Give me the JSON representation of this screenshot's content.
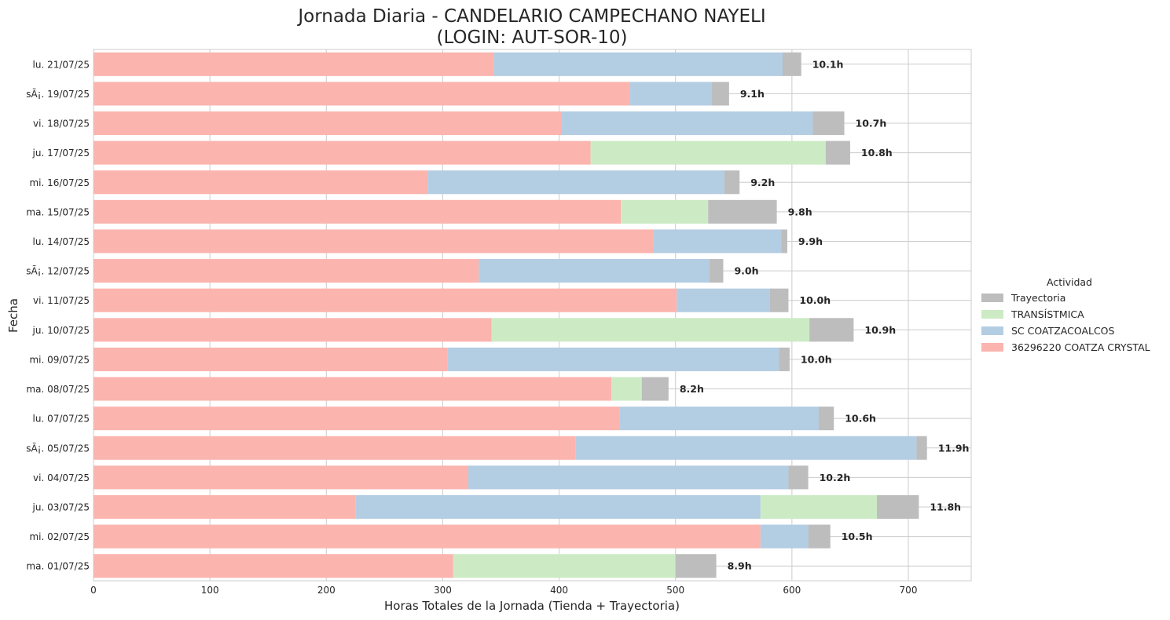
{
  "chart_data": {
    "type": "bar",
    "orientation": "horizontal",
    "stacked": true,
    "title": "Jornada Diaria - CANDELARIO CAMPECHANO NAYELI",
    "subtitle": "(LOGIN: AUT-SOR-10)",
    "xlabel": "Horas Totales de la Jornada (Tienda + Trayectoria)",
    "ylabel": "Fecha",
    "xlim": [
      0,
      754
    ],
    "xticks": [
      0,
      100,
      200,
      300,
      400,
      500,
      600,
      700
    ],
    "grid": true,
    "legend": {
      "title": "Actividad",
      "placement": "center-right outside",
      "entries": [
        "Trayectoria",
        "TRANSÍSTMICA",
        "SC COATZACOALCOS",
        "36296220 COATZA CRYSTAL"
      ]
    },
    "categories": [
      "lu. 21/07/25",
      "sÃ¡. 19/07/25",
      "vi. 18/07/25",
      "ju. 17/07/25",
      "mi. 16/07/25",
      "ma. 15/07/25",
      "lu. 14/07/25",
      "sÃ¡. 12/07/25",
      "vi. 11/07/25",
      "ju. 10/07/25",
      "mi. 09/07/25",
      "ma. 08/07/25",
      "lu. 07/07/25",
      "sÃ¡. 05/07/25",
      "vi. 04/07/25",
      "ju. 03/07/25",
      "mi. 02/07/25",
      "ma. 01/07/25"
    ],
    "series": [
      {
        "name": "36296220 COATZA CRYSTAL",
        "color": "#fbb4ae",
        "values": [
          344,
          461,
          402,
          427,
          287,
          453,
          481,
          331,
          501,
          342,
          304,
          445,
          452,
          414,
          322,
          225,
          573,
          309
        ]
      },
      {
        "name": "SC COATZACOALCOS",
        "color": "#b3cde3",
        "values": [
          248,
          70,
          216,
          0,
          255,
          0,
          110,
          198,
          80,
          0,
          285,
          0,
          171,
          293,
          275,
          348,
          41,
          0
        ]
      },
      {
        "name": "TRANSÍSTMICA",
        "color": "#ccebc5",
        "values": [
          0,
          0,
          0,
          202,
          0,
          75,
          0,
          0,
          0,
          273,
          0,
          26,
          0,
          0,
          0,
          100,
          0,
          191
        ]
      },
      {
        "name": "Trayectoria",
        "color": "#bdbdbd",
        "values": [
          16,
          15,
          27,
          21,
          13,
          59,
          5,
          12,
          16,
          38,
          9,
          23,
          13,
          9,
          17,
          36,
          19,
          35
        ]
      }
    ],
    "total_labels": [
      "10.1h",
      "9.1h",
      "10.7h",
      "10.8h",
      "9.2h",
      "9.8h",
      "9.9h",
      "9.0h",
      "10.0h",
      "10.9h",
      "10.0h",
      "8.2h",
      "10.6h",
      "11.9h",
      "10.2h",
      "11.8h",
      "10.5h",
      "8.9h"
    ]
  }
}
